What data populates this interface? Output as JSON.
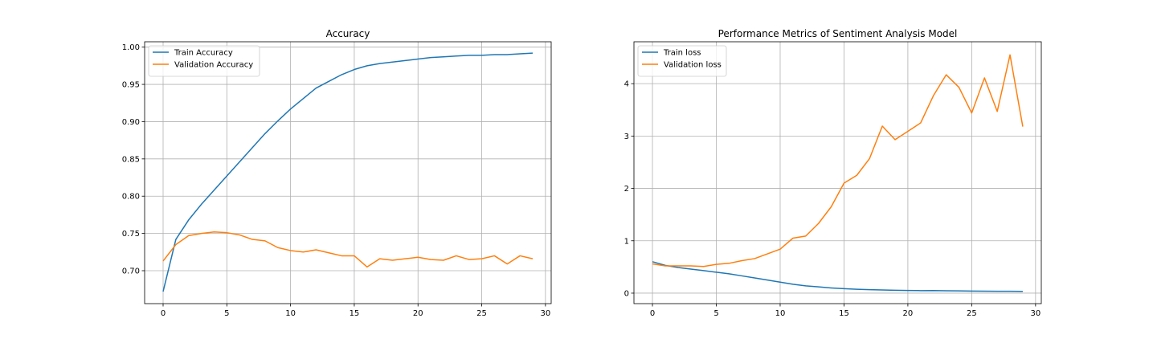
{
  "chart_data": [
    {
      "type": "line",
      "title": "Accuracy",
      "xlabel": "",
      "ylabel": "",
      "grid": true,
      "legend_placement": "upper-left",
      "xlim": [
        -1.45,
        30.45
      ],
      "ylim": [
        0.6558,
        1.0072
      ],
      "xticks": [
        0,
        5,
        10,
        15,
        20,
        25,
        30
      ],
      "xtick_labels": [
        "0",
        "5",
        "10",
        "15",
        "20",
        "25",
        "30"
      ],
      "yticks": [
        0.7,
        0.75,
        0.8,
        0.85,
        0.9,
        0.95,
        1.0
      ],
      "ytick_labels": [
        "0.70",
        "0.75",
        "0.80",
        "0.85",
        "0.90",
        "0.95",
        "1.00"
      ],
      "x": [
        0,
        1,
        2,
        3,
        4,
        5,
        6,
        7,
        8,
        9,
        10,
        11,
        12,
        13,
        14,
        15,
        16,
        17,
        18,
        19,
        20,
        21,
        22,
        23,
        24,
        25,
        26,
        27,
        28,
        29
      ],
      "series": [
        {
          "name": "Train Accuracy",
          "color": "#1f77b4",
          "values": [
            0.672,
            0.742,
            0.768,
            0.789,
            0.808,
            0.827,
            0.846,
            0.865,
            0.884,
            0.901,
            0.917,
            0.931,
            0.945,
            0.954,
            0.963,
            0.97,
            0.975,
            0.978,
            0.98,
            0.982,
            0.984,
            0.986,
            0.987,
            0.988,
            0.989,
            0.989,
            0.99,
            0.99,
            0.991,
            0.992
          ]
        },
        {
          "name": "Validation Accuracy",
          "color": "#ff7f0e",
          "values": [
            0.713,
            0.735,
            0.747,
            0.75,
            0.752,
            0.751,
            0.748,
            0.742,
            0.74,
            0.731,
            0.727,
            0.725,
            0.728,
            0.724,
            0.72,
            0.72,
            0.705,
            0.716,
            0.714,
            0.716,
            0.718,
            0.715,
            0.714,
            0.72,
            0.715,
            0.716,
            0.72,
            0.709,
            0.72,
            0.716
          ]
        }
      ]
    },
    {
      "type": "line",
      "title": "Performance Metrics of Sentiment Analysis Model",
      "xlabel": "",
      "ylabel": "",
      "grid": true,
      "legend_placement": "upper-left",
      "xlim": [
        -1.45,
        30.45
      ],
      "ylim": [
        -0.2,
        4.8
      ],
      "xticks": [
        0,
        5,
        10,
        15,
        20,
        25,
        30
      ],
      "xtick_labels": [
        "0",
        "5",
        "10",
        "15",
        "20",
        "25",
        "30"
      ],
      "yticks": [
        0,
        1,
        2,
        3,
        4
      ],
      "ytick_labels": [
        "0",
        "1",
        "2",
        "3",
        "4"
      ],
      "x": [
        0,
        1,
        2,
        3,
        4,
        5,
        6,
        7,
        8,
        9,
        10,
        11,
        12,
        13,
        14,
        15,
        16,
        17,
        18,
        19,
        20,
        21,
        22,
        23,
        24,
        25,
        26,
        27,
        28,
        29
      ],
      "series": [
        {
          "name": "Train loss",
          "color": "#1f77b4",
          "values": [
            0.6,
            0.53,
            0.49,
            0.46,
            0.43,
            0.4,
            0.37,
            0.33,
            0.29,
            0.25,
            0.21,
            0.17,
            0.14,
            0.12,
            0.1,
            0.085,
            0.075,
            0.067,
            0.06,
            0.055,
            0.052,
            0.048,
            0.05,
            0.045,
            0.043,
            0.04,
            0.038,
            0.036,
            0.035,
            0.033
          ]
        },
        {
          "name": "Validation loss",
          "color": "#ff7f0e",
          "values": [
            0.56,
            0.52,
            0.52,
            0.52,
            0.51,
            0.55,
            0.57,
            0.62,
            0.66,
            0.75,
            0.84,
            1.05,
            1.09,
            1.33,
            1.65,
            2.1,
            2.25,
            2.57,
            3.19,
            2.93,
            3.09,
            3.25,
            3.77,
            4.17,
            3.93,
            3.44,
            4.11,
            3.47,
            4.55,
            3.18
          ]
        }
      ]
    }
  ]
}
